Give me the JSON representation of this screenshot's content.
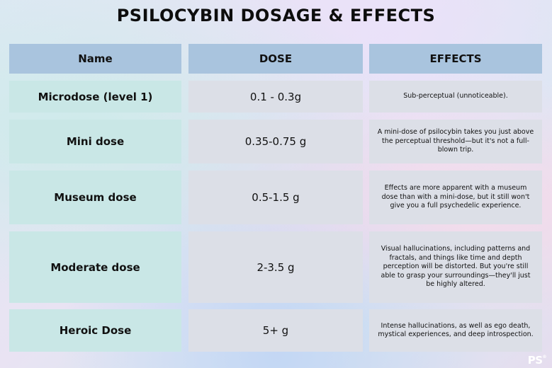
{
  "title": "PSILOCYBIN DOSAGE & EFFECTS",
  "headers": {
    "name": "Name",
    "dose": "DOSE",
    "effects": "EFFECTS"
  },
  "rows": [
    {
      "name": "Microdose (level 1)",
      "dose": "0.1 - 0.3g",
      "effects": "Sub-perceptual (unnoticeable)."
    },
    {
      "name": "Mini dose",
      "dose": "0.35-0.75 g",
      "effects": "A mini-dose of psilocybin takes you just above the perceptual threshold—but it's not a full-blown trip."
    },
    {
      "name": "Museum dose",
      "dose": "0.5-1.5 g",
      "effects": "Effects are more apparent with a museum dose than with a mini-dose, but it still won't give you a full psychedelic experience."
    },
    {
      "name": "Moderate dose",
      "dose": "2-3.5 g",
      "effects": "Visual hallucinations, including patterns and fractals, and things like time and depth perception will be distorted. But you're still able to grasp your surroundings—they'll just be highly altered."
    },
    {
      "name": "Heroic Dose",
      "dose": "5+ g",
      "effects": "Intense hallucinations, as well as ego death, mystical experiences, and deep introspection."
    }
  ],
  "logo": {
    "text": "PS",
    "mark": "®"
  }
}
